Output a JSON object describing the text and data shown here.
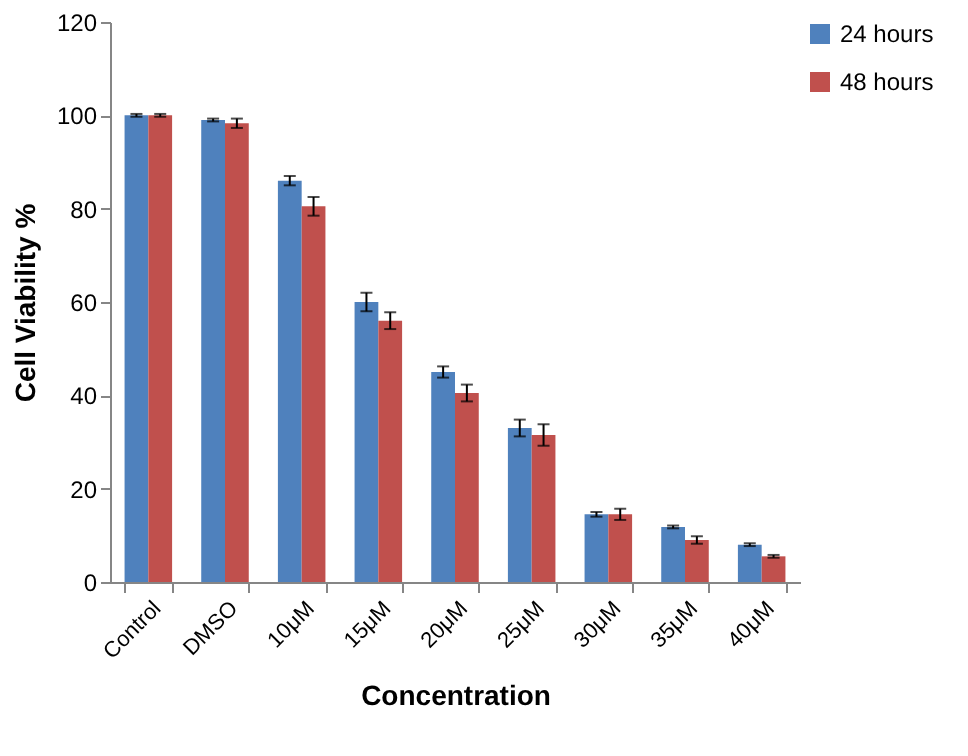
{
  "chart_data": {
    "type": "bar",
    "xlabel": "Concentration",
    "ylabel": "Cell Viability %",
    "categories": [
      "Control",
      "DMSO",
      "10μM",
      "15μM",
      "20μM",
      "25μM",
      "30μM",
      "35μM",
      "40μM"
    ],
    "series": [
      {
        "name": "24 hours",
        "color": "#4f81bd",
        "values": [
          100,
          99,
          86,
          60,
          45,
          33,
          14.5,
          11.8,
          8
        ],
        "errors": [
          0.3,
          0.3,
          1,
          2,
          1.2,
          1.8,
          0.5,
          0.3,
          0.3
        ]
      },
      {
        "name": "48 hours",
        "color": "#c0504d",
        "values": [
          100,
          98.3,
          80.5,
          56,
          40.5,
          31.5,
          14.5,
          9,
          5.5
        ],
        "errors": [
          0.3,
          1,
          2,
          1.8,
          1.8,
          2.3,
          1.2,
          0.8,
          0.3
        ]
      }
    ],
    "ylim": [
      0,
      120
    ],
    "yticks": [
      0,
      20,
      40,
      60,
      80,
      100,
      120
    ],
    "grid": false,
    "legend": "right"
  }
}
